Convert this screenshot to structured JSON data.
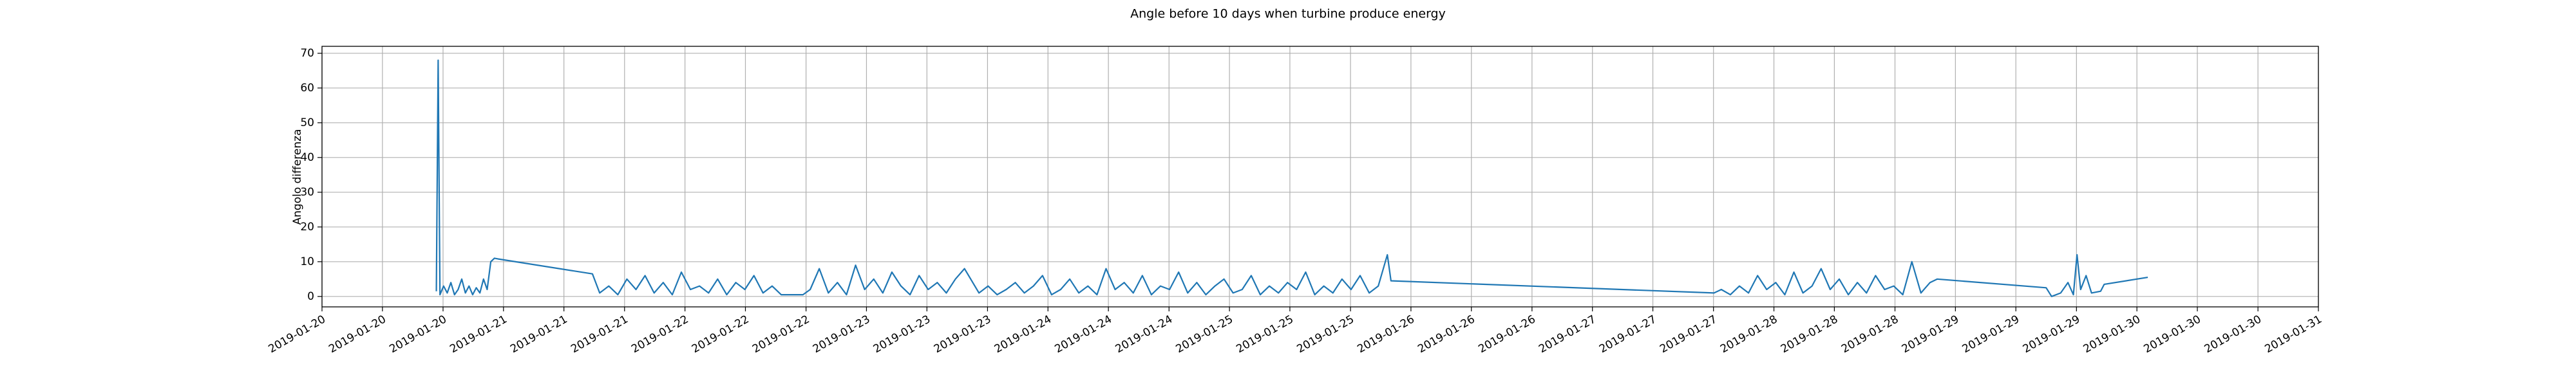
{
  "chart_data": {
    "type": "line",
    "title": "Angle before 10 days when turbine produce energy",
    "ylabel": "Angolo differenza",
    "color": "#1f77b4",
    "grid": true,
    "xlim": [
      17916,
      17927
    ],
    "ylim": [
      -3,
      72
    ],
    "yticks": [
      0,
      10,
      20,
      30,
      40,
      50,
      60,
      70
    ],
    "xticks": [
      {
        "value": 17916,
        "label": "2019-01-20"
      },
      {
        "value": 17916.333,
        "label": "2019-01-20"
      },
      {
        "value": 17916.667,
        "label": "2019-01-20"
      },
      {
        "value": 17917,
        "label": "2019-01-21"
      },
      {
        "value": 17917.333,
        "label": "2019-01-21"
      },
      {
        "value": 17917.667,
        "label": "2019-01-21"
      },
      {
        "value": 17918,
        "label": "2019-01-22"
      },
      {
        "value": 17918.333,
        "label": "2019-01-22"
      },
      {
        "value": 17918.667,
        "label": "2019-01-22"
      },
      {
        "value": 17919,
        "label": "2019-01-23"
      },
      {
        "value": 17919.333,
        "label": "2019-01-23"
      },
      {
        "value": 17919.667,
        "label": "2019-01-23"
      },
      {
        "value": 17920,
        "label": "2019-01-24"
      },
      {
        "value": 17920.333,
        "label": "2019-01-24"
      },
      {
        "value": 17920.667,
        "label": "2019-01-24"
      },
      {
        "value": 17921,
        "label": "2019-01-25"
      },
      {
        "value": 17921.333,
        "label": "2019-01-25"
      },
      {
        "value": 17921.667,
        "label": "2019-01-25"
      },
      {
        "value": 17922,
        "label": "2019-01-26"
      },
      {
        "value": 17922.333,
        "label": "2019-01-26"
      },
      {
        "value": 17922.667,
        "label": "2019-01-26"
      },
      {
        "value": 17923,
        "label": "2019-01-27"
      },
      {
        "value": 17923.333,
        "label": "2019-01-27"
      },
      {
        "value": 17923.667,
        "label": "2019-01-27"
      },
      {
        "value": 17924,
        "label": "2019-01-28"
      },
      {
        "value": 17924.333,
        "label": "2019-01-28"
      },
      {
        "value": 17924.667,
        "label": "2019-01-28"
      },
      {
        "value": 17925,
        "label": "2019-01-29"
      },
      {
        "value": 17925.333,
        "label": "2019-01-29"
      },
      {
        "value": 17925.667,
        "label": "2019-01-29"
      },
      {
        "value": 17926,
        "label": "2019-01-30"
      },
      {
        "value": 17926.333,
        "label": "2019-01-30"
      },
      {
        "value": 17926.667,
        "label": "2019-01-30"
      },
      {
        "value": 17927,
        "label": "2019-01-31"
      }
    ],
    "x": [
      17916.63,
      17916.64,
      17916.65,
      17916.67,
      17916.69,
      17916.71,
      17916.73,
      17916.75,
      17916.77,
      17916.79,
      17916.81,
      17916.83,
      17916.85,
      17916.87,
      17916.89,
      17916.91,
      17916.93,
      17916.95,
      17916.97,
      17917.49,
      17917.53,
      17917.58,
      17917.63,
      17917.68,
      17917.73,
      17917.78,
      17917.83,
      17917.88,
      17917.93,
      17917.98,
      17918.03,
      17918.08,
      17918.13,
      17918.18,
      17918.23,
      17918.28,
      17918.33,
      17918.38,
      17918.43,
      17918.48,
      17918.53,
      17918.65,
      17918.69,
      17918.74,
      17918.79,
      17918.84,
      17918.89,
      17918.94,
      17918.99,
      17919.04,
      17919.09,
      17919.14,
      17919.19,
      17919.24,
      17919.29,
      17919.34,
      17919.39,
      17919.44,
      17919.49,
      17919.54,
      17919.62,
      17919.67,
      17919.72,
      17919.77,
      17919.82,
      17919.87,
      17919.92,
      17919.97,
      17920.02,
      17920.07,
      17920.12,
      17920.17,
      17920.22,
      17920.27,
      17920.32,
      17920.37,
      17920.42,
      17920.47,
      17920.52,
      17920.57,
      17920.62,
      17920.67,
      17920.72,
      17920.77,
      17920.82,
      17920.87,
      17920.92,
      17920.97,
      17921.02,
      17921.07,
      17921.12,
      17921.17,
      17921.22,
      17921.27,
      17921.32,
      17921.37,
      17921.42,
      17921.47,
      17921.52,
      17921.57,
      17921.62,
      17921.67,
      17921.72,
      17921.77,
      17921.82,
      17921.87,
      17921.89,
      17923.67,
      17923.71,
      17923.76,
      17923.81,
      17923.86,
      17923.91,
      17923.96,
      17924.01,
      17924.06,
      17924.11,
      17924.16,
      17924.21,
      17924.26,
      17924.31,
      17924.36,
      17924.41,
      17924.46,
      17924.51,
      17924.56,
      17924.61,
      17924.66,
      17924.71,
      17924.76,
      17924.81,
      17924.86,
      17924.9,
      17925.5,
      17925.53,
      17925.58,
      17925.62,
      17925.65,
      17925.67,
      17925.69,
      17925.72,
      17925.75,
      17925.8,
      17925.82,
      17926.06
    ],
    "values": [
      1.5,
      68,
      0.5,
      3,
      1,
      4,
      0.5,
      2,
      5,
      1,
      3,
      0.5,
      2.5,
      1,
      5,
      2,
      10,
      11,
      10.8,
      6.5,
      1,
      3,
      0.5,
      5,
      2,
      6,
      1,
      4,
      0.5,
      7,
      2,
      3,
      1,
      5,
      0.5,
      4,
      2,
      6,
      1,
      3,
      0.5,
      0.5,
      2,
      8,
      1,
      4,
      0.5,
      9,
      2,
      5,
      1,
      7,
      3,
      0.5,
      6,
      2,
      4,
      1,
      5,
      8,
      1,
      3,
      0.5,
      2,
      4,
      1,
      3,
      6,
      0.5,
      2,
      5,
      1,
      3,
      0.5,
      8,
      2,
      4,
      1,
      6,
      0.5,
      3,
      2,
      7,
      1,
      4,
      0.5,
      3,
      5,
      1,
      2,
      6,
      0.5,
      3,
      1,
      4,
      2,
      7,
      0.5,
      3,
      1,
      5,
      2,
      6,
      1,
      3,
      12,
      4.5,
      1,
      2,
      0.5,
      3,
      1,
      6,
      2,
      4,
      0.5,
      7,
      1,
      3,
      8,
      2,
      5,
      0.5,
      4,
      1,
      6,
      2,
      3,
      0.5,
      10,
      1,
      4,
      5,
      2.5,
      0,
      1,
      4,
      0.5,
      12,
      2,
      6,
      1,
      1.5,
      3.5,
      5.5
    ]
  }
}
